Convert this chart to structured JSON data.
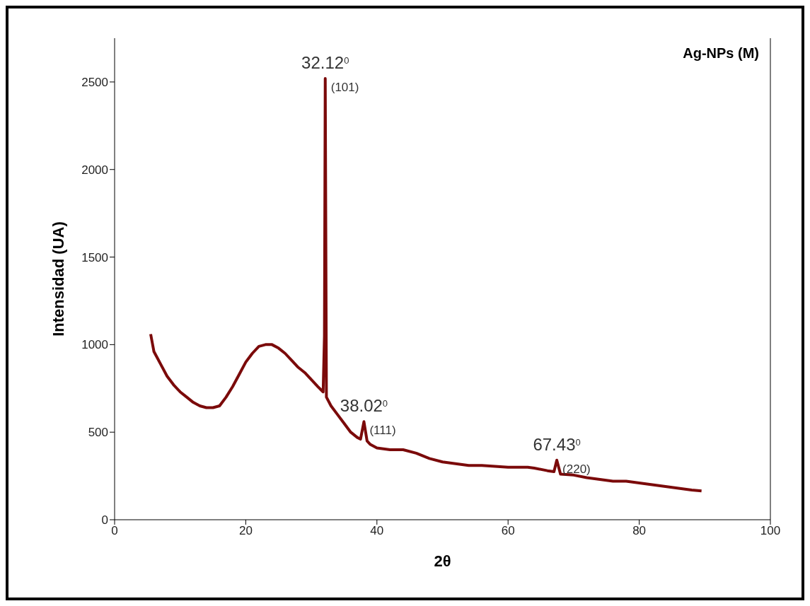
{
  "chart_data": {
    "type": "line",
    "xlabel": "2θ",
    "ylabel": "Intensidad (UA)",
    "xlim": [
      0,
      100
    ],
    "xticks": [
      0,
      20,
      40,
      60,
      80,
      100
    ],
    "ylim": [
      0,
      2750
    ],
    "yticks": [
      0,
      500,
      1000,
      1500,
      2000,
      2500
    ],
    "grid": false,
    "legend": false,
    "marker": "none",
    "line_style": "solid",
    "series": [
      {
        "color": "#7b0a0a",
        "x": [
          5.5,
          6,
          7,
          8,
          9,
          10,
          11,
          12,
          13,
          14,
          15,
          16,
          17,
          18,
          19,
          20,
          21,
          22,
          23,
          24,
          25,
          26,
          27,
          28,
          29,
          30,
          31,
          31.8,
          32,
          32.12,
          32.3,
          33,
          34,
          35,
          36,
          37,
          37.5,
          38.02,
          38.5,
          39,
          40,
          42,
          44,
          46,
          48,
          50,
          52,
          54,
          56,
          58,
          60,
          62,
          63,
          64,
          66,
          67,
          67.43,
          68,
          70,
          72,
          74,
          76,
          78,
          80,
          82,
          84,
          86,
          88,
          89.5
        ],
        "values": [
          1060,
          960,
          890,
          820,
          770,
          730,
          700,
          670,
          650,
          640,
          640,
          650,
          700,
          760,
          830,
          900,
          950,
          990,
          1000,
          1000,
          980,
          950,
          910,
          870,
          840,
          800,
          760,
          730,
          1050,
          2520,
          700,
          650,
          600,
          550,
          500,
          470,
          460,
          560,
          450,
          430,
          410,
          400,
          400,
          380,
          350,
          330,
          320,
          310,
          310,
          305,
          300,
          300,
          300,
          295,
          280,
          275,
          340,
          260,
          255,
          240,
          230,
          220,
          220,
          210,
          200,
          190,
          180,
          170,
          165
        ]
      }
    ],
    "annotations": [
      {
        "text": "32.12$^{0}$",
        "x": 32.12,
        "y": 2520
      },
      {
        "text": "(101)",
        "x": 32.12,
        "y": 2520
      },
      {
        "text": "38.02$^{0}$",
        "x": 38.02,
        "y": 560
      },
      {
        "text": "(111)",
        "x": 38.02,
        "y": 560
      },
      {
        "text": "67.43$^{0}$",
        "x": 67.43,
        "y": 340
      },
      {
        "text": "(220)",
        "x": 67.43,
        "y": 340
      },
      "Ag-NPs (M)"
    ]
  }
}
